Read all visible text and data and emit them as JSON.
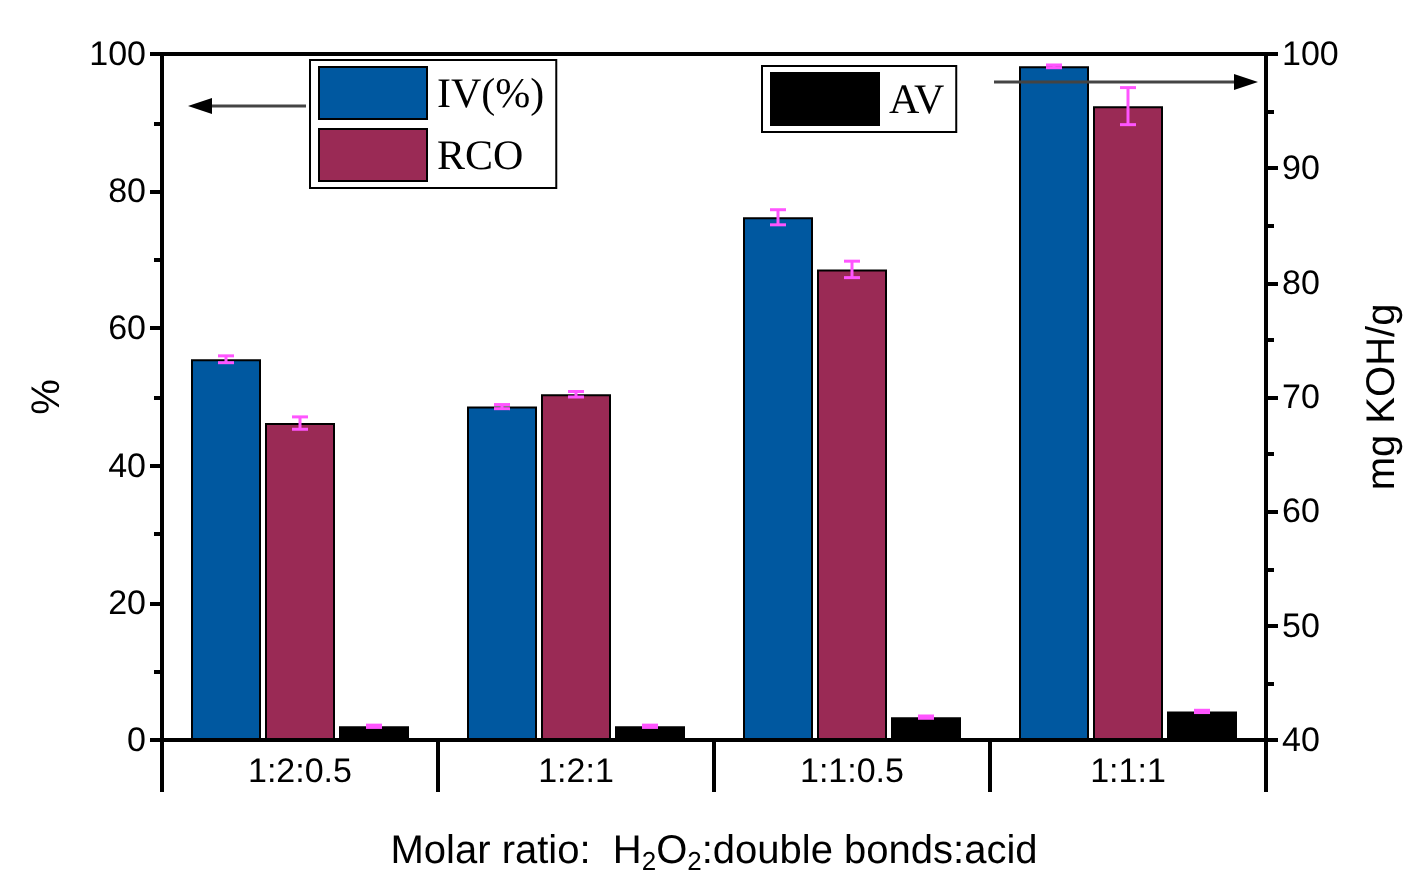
{
  "chart_data": {
    "type": "bar",
    "xlabel": "Molar ratio:  H$_{2}$O$_{2}$:double bonds:acid",
    "ylabel": "%",
    "y2label": "mg KOH/g",
    "categories": [
      "1:2:0.5",
      "1:2:1",
      "1:1:0.5",
      "1:1:1"
    ],
    "series": [
      {
        "name": "IV(%)",
        "color": "#0058a0",
        "values": [
          55.5,
          48.6,
          76.2,
          98.2
        ],
        "errors": [
          0.5,
          0.3,
          1.1,
          0.2
        ]
      },
      {
        "name": "RCO",
        "color": "#9a2a55",
        "values": [
          46.2,
          50.4,
          68.6,
          92.4
        ],
        "errors": [
          0.9,
          0.4,
          1.2,
          2.7
        ]
      },
      {
        "name": "AV",
        "color": "#000000",
        "values": [
          41.2,
          41.2,
          42.0,
          42.5
        ],
        "errors": [
          0.1,
          0.1,
          0.1,
          0.1
        ],
        "axis": "y2"
      }
    ],
    "ylim": [
      0,
      100
    ],
    "yticks": [
      0,
      20,
      40,
      60,
      80,
      100
    ],
    "y2lim": [
      40,
      100
    ],
    "y2ticks": [
      40,
      50,
      60,
      70,
      80,
      90,
      100
    ],
    "legend": "top",
    "grid": false
  }
}
